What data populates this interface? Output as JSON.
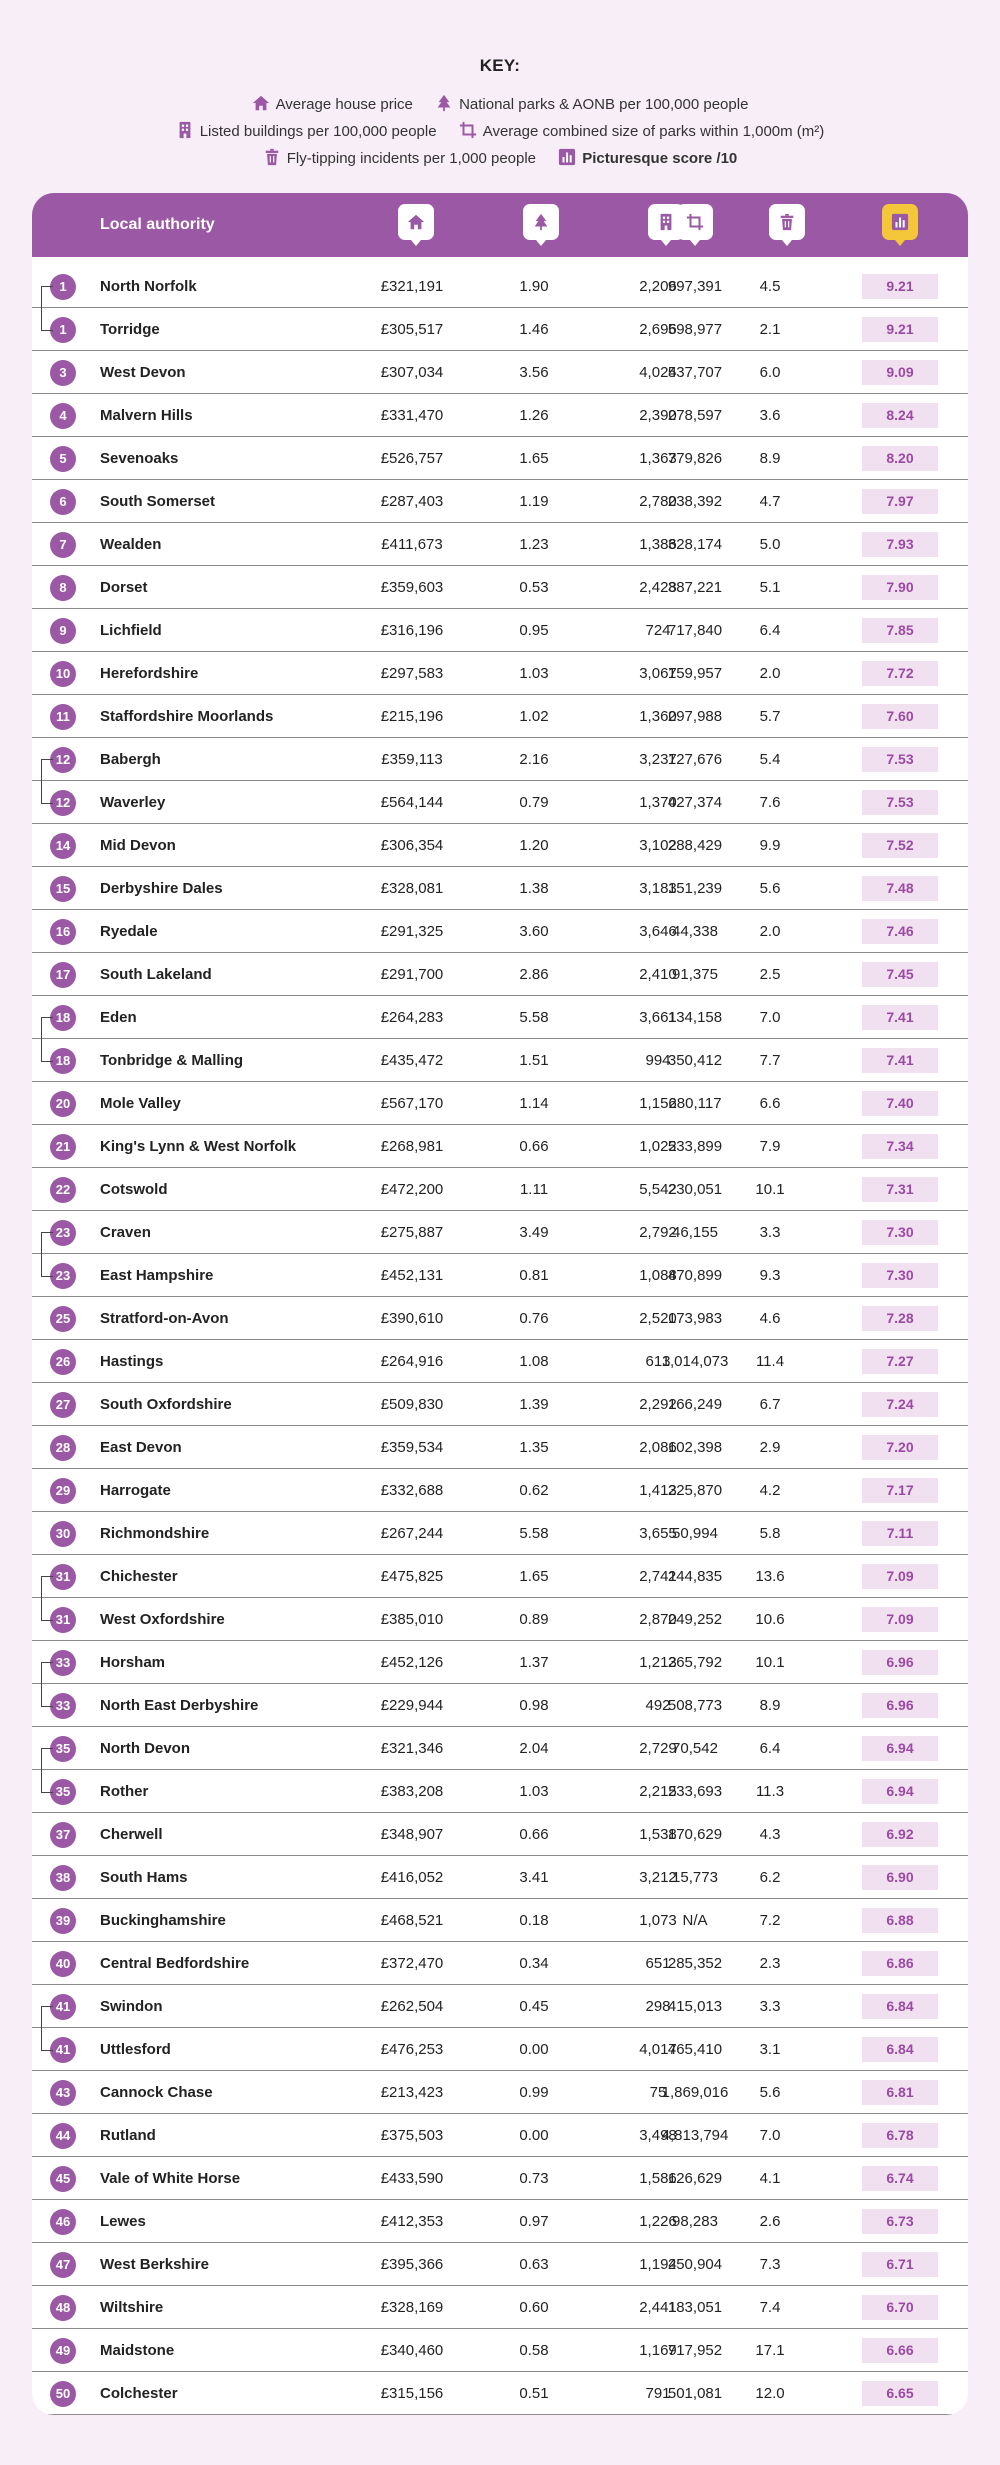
{
  "key": {
    "title": "KEY:",
    "items": {
      "house": "Average house price",
      "parks": "National parks & AONB per 100,000 people",
      "listed": "Listed buildings per 100,000 people",
      "size": "Average combined size of parks within 1,000m (m²)",
      "fly": "Fly-tipping incidents per 1,000 people",
      "score": "Picturesque score /10"
    }
  },
  "table": {
    "header_label": "Local authority",
    "icons": [
      "house-icon",
      "tree-icon",
      "building-icon",
      "crop-icon",
      "bin-icon",
      "chart-icon"
    ],
    "accent": "#9b59a5",
    "score_bg": "#f1e0ef",
    "score_text": "#9b4aa3",
    "gold": "#f4c73a",
    "rows": [
      {
        "rank": "1",
        "name": "North Norfolk",
        "price": "£321,191",
        "parks": "1.90",
        "listed": "2,206",
        "size": "997,391",
        "fly": "4.5",
        "score": "9.21"
      },
      {
        "rank": "1",
        "name": "Torridge",
        "price": "£305,517",
        "parks": "1.46",
        "listed": "2,696",
        "size": "598,977",
        "fly": "2.1",
        "score": "9.21"
      },
      {
        "rank": "3",
        "name": "West Devon",
        "price": "£307,034",
        "parks": "3.56",
        "listed": "4,024",
        "size": "537,707",
        "fly": "6.0",
        "score": "9.09"
      },
      {
        "rank": "4",
        "name": "Malvern Hills",
        "price": "£331,470",
        "parks": "1.26",
        "listed": "2,390",
        "size": "278,597",
        "fly": "3.6",
        "score": "8.24"
      },
      {
        "rank": "5",
        "name": "Sevenoaks",
        "price": "£526,757",
        "parks": "1.65",
        "listed": "1,363",
        "size": "779,826",
        "fly": "8.9",
        "score": "8.20"
      },
      {
        "rank": "6",
        "name": "South Somerset",
        "price": "£287,403",
        "parks": "1.19",
        "listed": "2,780",
        "size": "238,392",
        "fly": "4.7",
        "score": "7.97"
      },
      {
        "rank": "7",
        "name": "Wealden",
        "price": "£411,673",
        "parks": "1.23",
        "listed": "1,386",
        "size": "328,174",
        "fly": "5.0",
        "score": "7.93"
      },
      {
        "rank": "8",
        "name": "Dorset",
        "price": "£359,603",
        "parks": "0.53",
        "listed": "2,428",
        "size": "387,221",
        "fly": "5.1",
        "score": "7.90"
      },
      {
        "rank": "9",
        "name": "Lichfield",
        "price": "£316,196",
        "parks": "0.95",
        "listed": "724",
        "size": "717,840",
        "fly": "6.4",
        "score": "7.85"
      },
      {
        "rank": "10",
        "name": "Herefordshire",
        "price": "£297,583",
        "parks": "1.03",
        "listed": "3,067",
        "size": "159,957",
        "fly": "2.0",
        "score": "7.72"
      },
      {
        "rank": "11",
        "name": "Staffordshire Moorlands",
        "price": "£215,196",
        "parks": "1.02",
        "listed": "1,360",
        "size": "297,988",
        "fly": "5.7",
        "score": "7.60"
      },
      {
        "rank": "12",
        "name": "Babergh",
        "price": "£359,113",
        "parks": "2.16",
        "listed": "3,237",
        "size": "127,676",
        "fly": "5.4",
        "score": "7.53"
      },
      {
        "rank": "12",
        "name": "Waverley",
        "price": "£564,144",
        "parks": "0.79",
        "listed": "1,370",
        "size": "427,374",
        "fly": "7.6",
        "score": "7.53"
      },
      {
        "rank": "14",
        "name": "Mid Devon",
        "price": "£306,354",
        "parks": "1.20",
        "listed": "3,102",
        "size": "288,429",
        "fly": "9.9",
        "score": "7.52"
      },
      {
        "rank": "15",
        "name": "Derbyshire Dales",
        "price": "£328,081",
        "parks": "1.38",
        "listed": "3,183",
        "size": "151,239",
        "fly": "5.6",
        "score": "7.48"
      },
      {
        "rank": "16",
        "name": "Ryedale",
        "price": "£291,325",
        "parks": "3.60",
        "listed": "3,646",
        "size": "44,338",
        "fly": "2.0",
        "score": "7.46"
      },
      {
        "rank": "17",
        "name": "South Lakeland",
        "price": "£291,700",
        "parks": "2.86",
        "listed": "2,410",
        "size": "91,375",
        "fly": "2.5",
        "score": "7.45"
      },
      {
        "rank": "18",
        "name": "Eden",
        "price": "£264,283",
        "parks": "5.58",
        "listed": "3,661",
        "size": "134,158",
        "fly": "7.0",
        "score": "7.41"
      },
      {
        "rank": "18",
        "name": "Tonbridge & Malling",
        "price": "£435,472",
        "parks": "1.51",
        "listed": "994",
        "size": "350,412",
        "fly": "7.7",
        "score": "7.41"
      },
      {
        "rank": "20",
        "name": "Mole Valley",
        "price": "£567,170",
        "parks": "1.14",
        "listed": "1,156",
        "size": "280,117",
        "fly": "6.6",
        "score": "7.40"
      },
      {
        "rank": "21",
        "name": "King's Lynn & West Norfolk",
        "price": "£268,981",
        "parks": "0.66",
        "listed": "1,022",
        "size": "533,899",
        "fly": "7.9",
        "score": "7.34"
      },
      {
        "rank": "22",
        "name": "Cotswold",
        "price": "£472,200",
        "parks": "1.11",
        "listed": "5,542",
        "size": "230,051",
        "fly": "10.1",
        "score": "7.31"
      },
      {
        "rank": "23",
        "name": "Craven",
        "price": "£275,887",
        "parks": "3.49",
        "listed": "2,792",
        "size": "46,155",
        "fly": "3.3",
        "score": "7.30"
      },
      {
        "rank": "23",
        "name": "East Hampshire",
        "price": "£452,131",
        "parks": "0.81",
        "listed": "1,088",
        "size": "470,899",
        "fly": "9.3",
        "score": "7.30"
      },
      {
        "rank": "25",
        "name": "Stratford-on-Avon",
        "price": "£390,610",
        "parks": "0.76",
        "listed": "2,520",
        "size": "173,983",
        "fly": "4.6",
        "score": "7.28"
      },
      {
        "rank": "26",
        "name": "Hastings",
        "price": "£264,916",
        "parks": "1.08",
        "listed": "613",
        "size": "1,014,073",
        "fly": "11.4",
        "score": "7.27"
      },
      {
        "rank": "27",
        "name": "South Oxfordshire",
        "price": "£509,830",
        "parks": "1.39",
        "listed": "2,292",
        "size": "166,249",
        "fly": "6.7",
        "score": "7.24"
      },
      {
        "rank": "28",
        "name": "East Devon",
        "price": "£359,534",
        "parks": "1.35",
        "listed": "2,086",
        "size": "102,398",
        "fly": "2.9",
        "score": "7.20"
      },
      {
        "rank": "29",
        "name": "Harrogate",
        "price": "£332,688",
        "parks": "0.62",
        "listed": "1,413",
        "size": "225,870",
        "fly": "4.2",
        "score": "7.17"
      },
      {
        "rank": "30",
        "name": "Richmondshire",
        "price": "£267,244",
        "parks": "5.58",
        "listed": "3,655",
        "size": "50,994",
        "fly": "5.8",
        "score": "7.11"
      },
      {
        "rank": "31",
        "name": "Chichester",
        "price": "£475,825",
        "parks": "1.65",
        "listed": "2,741",
        "size": "244,835",
        "fly": "13.6",
        "score": "7.09"
      },
      {
        "rank": "31",
        "name": "West Oxfordshire",
        "price": "£385,010",
        "parks": "0.89",
        "listed": "2,870",
        "size": "249,252",
        "fly": "10.6",
        "score": "7.09"
      },
      {
        "rank": "33",
        "name": "Horsham",
        "price": "£452,126",
        "parks": "1.37",
        "listed": "1,213",
        "size": "265,792",
        "fly": "10.1",
        "score": "6.96"
      },
      {
        "rank": "33",
        "name": "North East Derbyshire",
        "price": "£229,944",
        "parks": "0.98",
        "listed": "492",
        "size": "508,773",
        "fly": "8.9",
        "score": "6.96"
      },
      {
        "rank": "35",
        "name": "North Devon",
        "price": "£321,346",
        "parks": "2.04",
        "listed": "2,729",
        "size": "70,542",
        "fly": "6.4",
        "score": "6.94"
      },
      {
        "rank": "35",
        "name": "Rother",
        "price": "£383,208",
        "parks": "1.03",
        "listed": "2,215",
        "size": "233,693",
        "fly": "11.3",
        "score": "6.94"
      },
      {
        "rank": "37",
        "name": "Cherwell",
        "price": "£348,907",
        "parks": "0.66",
        "listed": "1,538",
        "size": "170,629",
        "fly": "4.3",
        "score": "6.92"
      },
      {
        "rank": "38",
        "name": "South Hams",
        "price": "£416,052",
        "parks": "3.41",
        "listed": "3,212",
        "size": "15,773",
        "fly": "6.2",
        "score": "6.90"
      },
      {
        "rank": "39",
        "name": "Buckinghamshire",
        "price": "£468,521",
        "parks": "0.18",
        "listed": "1,073",
        "size": "N/A",
        "fly": "7.2",
        "score": "6.88"
      },
      {
        "rank": "40",
        "name": "Central Bedfordshire",
        "price": "£372,470",
        "parks": "0.34",
        "listed": "651",
        "size": "285,352",
        "fly": "2.3",
        "score": "6.86"
      },
      {
        "rank": "41",
        "name": "Swindon",
        "price": "£262,504",
        "parks": "0.45",
        "listed": "298",
        "size": "415,013",
        "fly": "3.3",
        "score": "6.84"
      },
      {
        "rank": "41",
        "name": "Uttlesford",
        "price": "£476,253",
        "parks": "0.00",
        "listed": "4,017",
        "size": "465,410",
        "fly": "3.1",
        "score": "6.84"
      },
      {
        "rank": "43",
        "name": "Cannock Chase",
        "price": "£213,423",
        "parks": "0.99",
        "listed": "75",
        "size": "1,869,016",
        "fly": "5.6",
        "score": "6.81"
      },
      {
        "rank": "44",
        "name": "Rutland",
        "price": "£375,503",
        "parks": "0.00",
        "listed": "3,498",
        "size": "4,813,794",
        "fly": "7.0",
        "score": "6.78"
      },
      {
        "rank": "45",
        "name": "Vale of White Horse",
        "price": "£433,590",
        "parks": "0.73",
        "listed": "1,586",
        "size": "126,629",
        "fly": "4.1",
        "score": "6.74"
      },
      {
        "rank": "46",
        "name": "Lewes",
        "price": "£412,353",
        "parks": "0.97",
        "listed": "1,226",
        "size": "98,283",
        "fly": "2.6",
        "score": "6.73"
      },
      {
        "rank": "47",
        "name": "West Berkshire",
        "price": "£395,366",
        "parks": "0.63",
        "listed": "1,194",
        "size": "250,904",
        "fly": "7.3",
        "score": "6.71"
      },
      {
        "rank": "48",
        "name": "Wiltshire",
        "price": "£328,169",
        "parks": "0.60",
        "listed": "2,441",
        "size": "183,051",
        "fly": "7.4",
        "score": "6.70"
      },
      {
        "rank": "49",
        "name": "Maidstone",
        "price": "£340,460",
        "parks": "0.58",
        "listed": "1,169",
        "size": "717,952",
        "fly": "17.1",
        "score": "6.66"
      },
      {
        "rank": "50",
        "name": "Colchester",
        "price": "£315,156",
        "parks": "0.51",
        "listed": "791",
        "size": "501,081",
        "fly": "12.0",
        "score": "6.65"
      }
    ]
  }
}
